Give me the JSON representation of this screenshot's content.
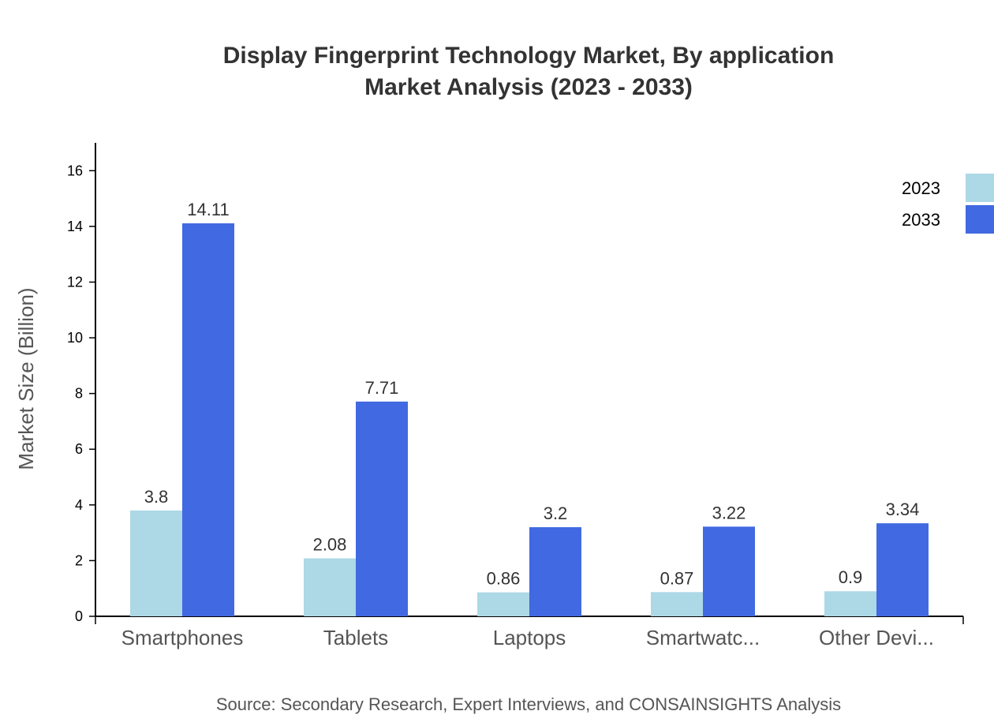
{
  "chart_data": {
    "type": "bar",
    "title": "Display Fingerprint Technology Market, By application",
    "subtitle": "Market Analysis (2023 - 2033)",
    "xlabel": "",
    "ylabel": "Market Size (Billion)",
    "ylim": [
      0,
      17
    ],
    "yticks": [
      0,
      2,
      4,
      6,
      8,
      10,
      12,
      14,
      16
    ],
    "categories": [
      "Smartphones",
      "Tablets",
      "Laptops",
      "Smartwatc...",
      "Other Devi..."
    ],
    "series": [
      {
        "name": "2023",
        "color": "#add8e6",
        "values": [
          3.8,
          2.08,
          0.86,
          0.87,
          0.9
        ]
      },
      {
        "name": "2033",
        "color": "#4169e1",
        "values": [
          14.11,
          7.71,
          3.2,
          3.22,
          3.34
        ]
      }
    ],
    "grid": false,
    "legend": "top-right"
  },
  "source": "Source: Secondary Research, Expert Interviews, and CONSAINSIGHTS Analysis"
}
